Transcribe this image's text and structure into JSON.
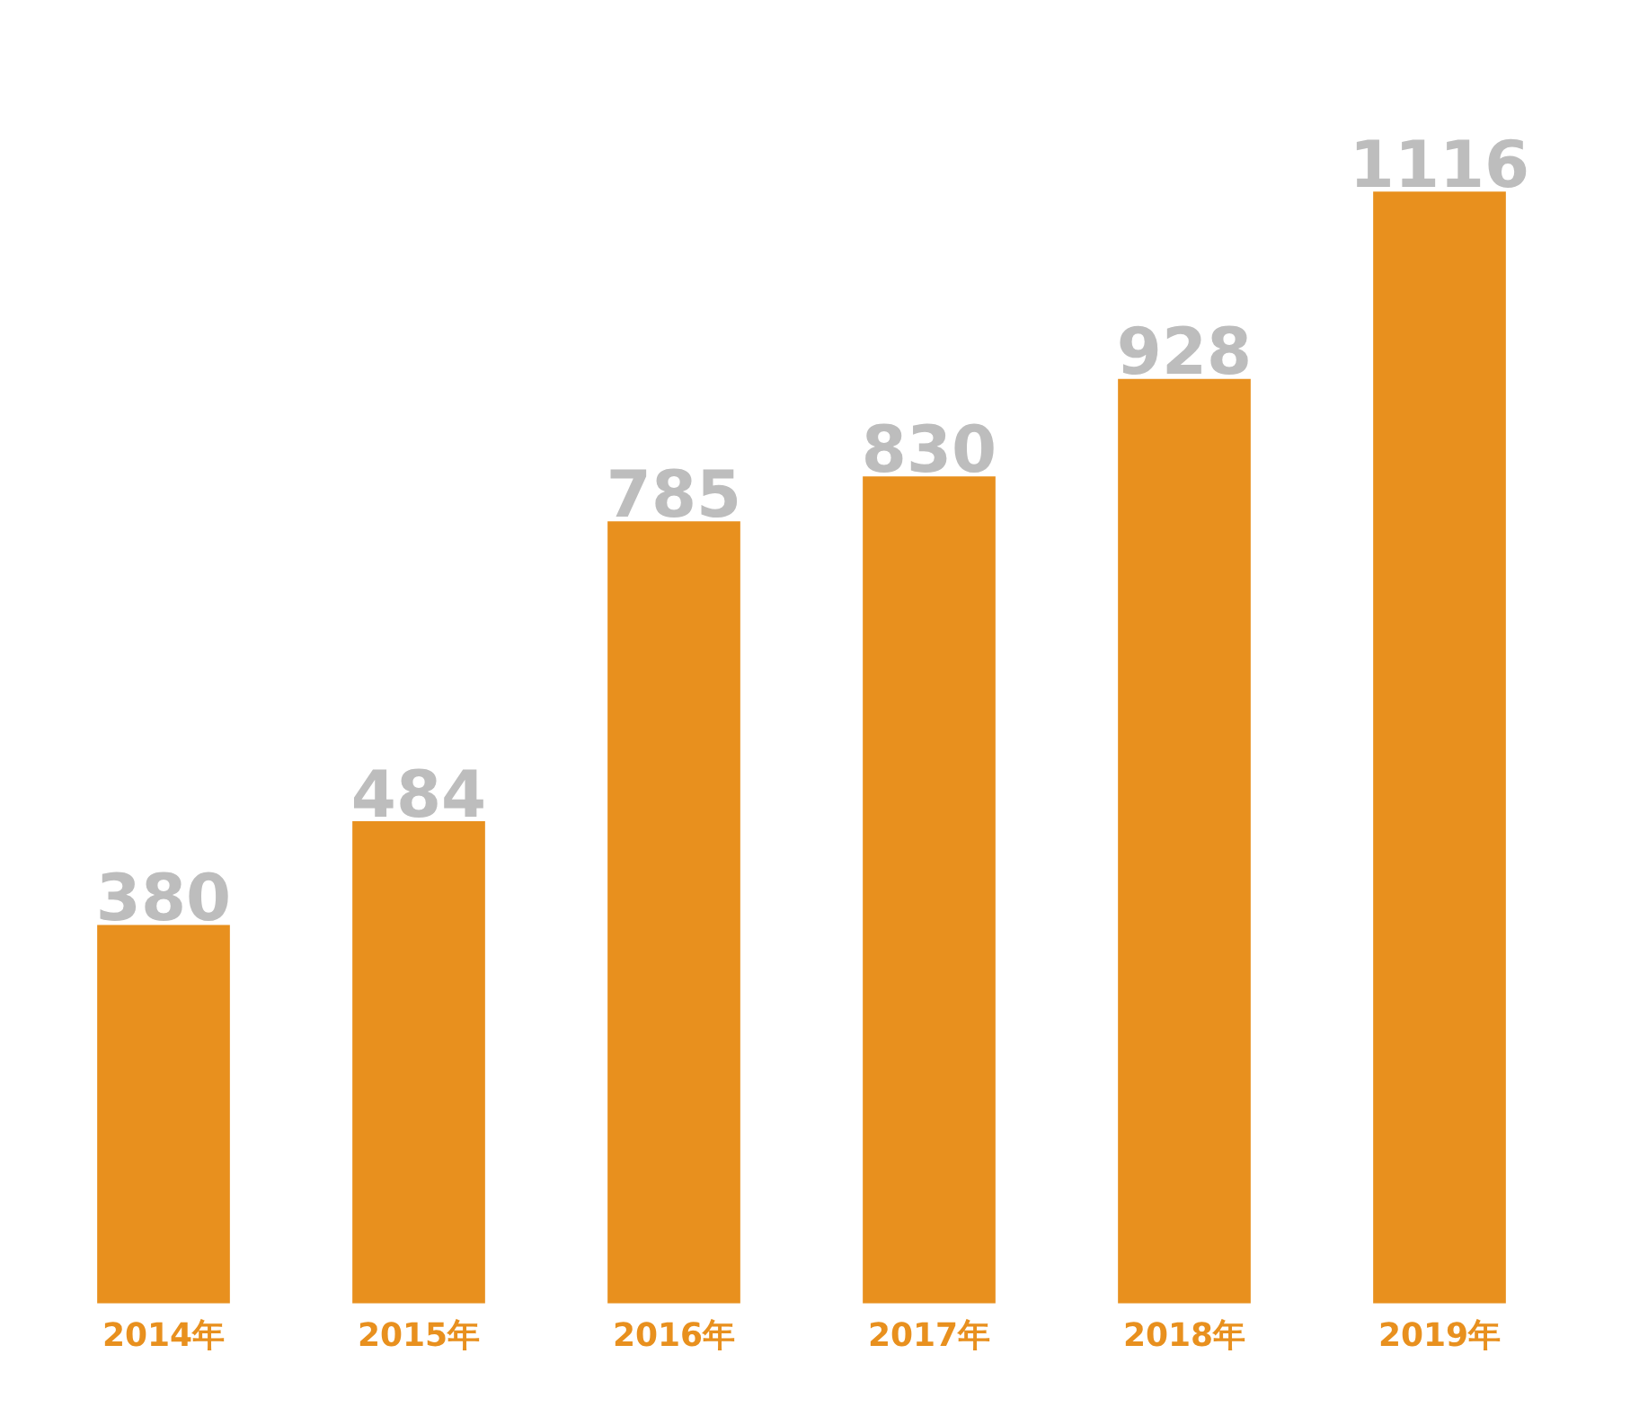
{
  "chart_data": {
    "type": "bar",
    "categories": [
      "2014年",
      "2015年",
      "2016年",
      "2017年",
      "2018年",
      "2019年"
    ],
    "values": [
      380,
      484,
      785,
      830,
      928,
      1116
    ],
    "color": "#e8901e",
    "data_labels": true,
    "grid": false,
    "legend": false
  }
}
